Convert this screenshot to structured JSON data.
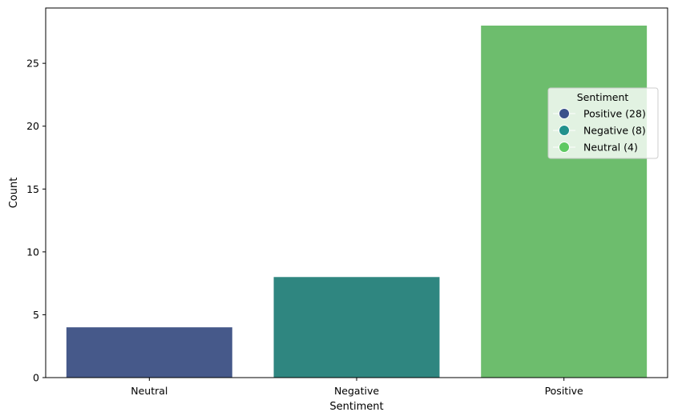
{
  "chart_data": {
    "type": "bar",
    "title": "",
    "xlabel": "Sentiment",
    "ylabel": "Count",
    "categories": [
      "Neutral",
      "Negative",
      "Positive"
    ],
    "values": [
      4,
      8,
      28
    ],
    "colors": [
      "#46598a",
      "#2f8680",
      "#6dbd6d"
    ],
    "ylim": [
      0,
      29.4
    ],
    "yticks": [
      0,
      5,
      10,
      15,
      20,
      25
    ],
    "grid": false,
    "legend": {
      "title": "Sentiment",
      "placement": "right",
      "entries": [
        {
          "label": "Positive (28)",
          "color": "#3b528b"
        },
        {
          "label": "Negative (8)",
          "color": "#21918c"
        },
        {
          "label": "Neutral (4)",
          "color": "#5ec962"
        }
      ]
    }
  }
}
